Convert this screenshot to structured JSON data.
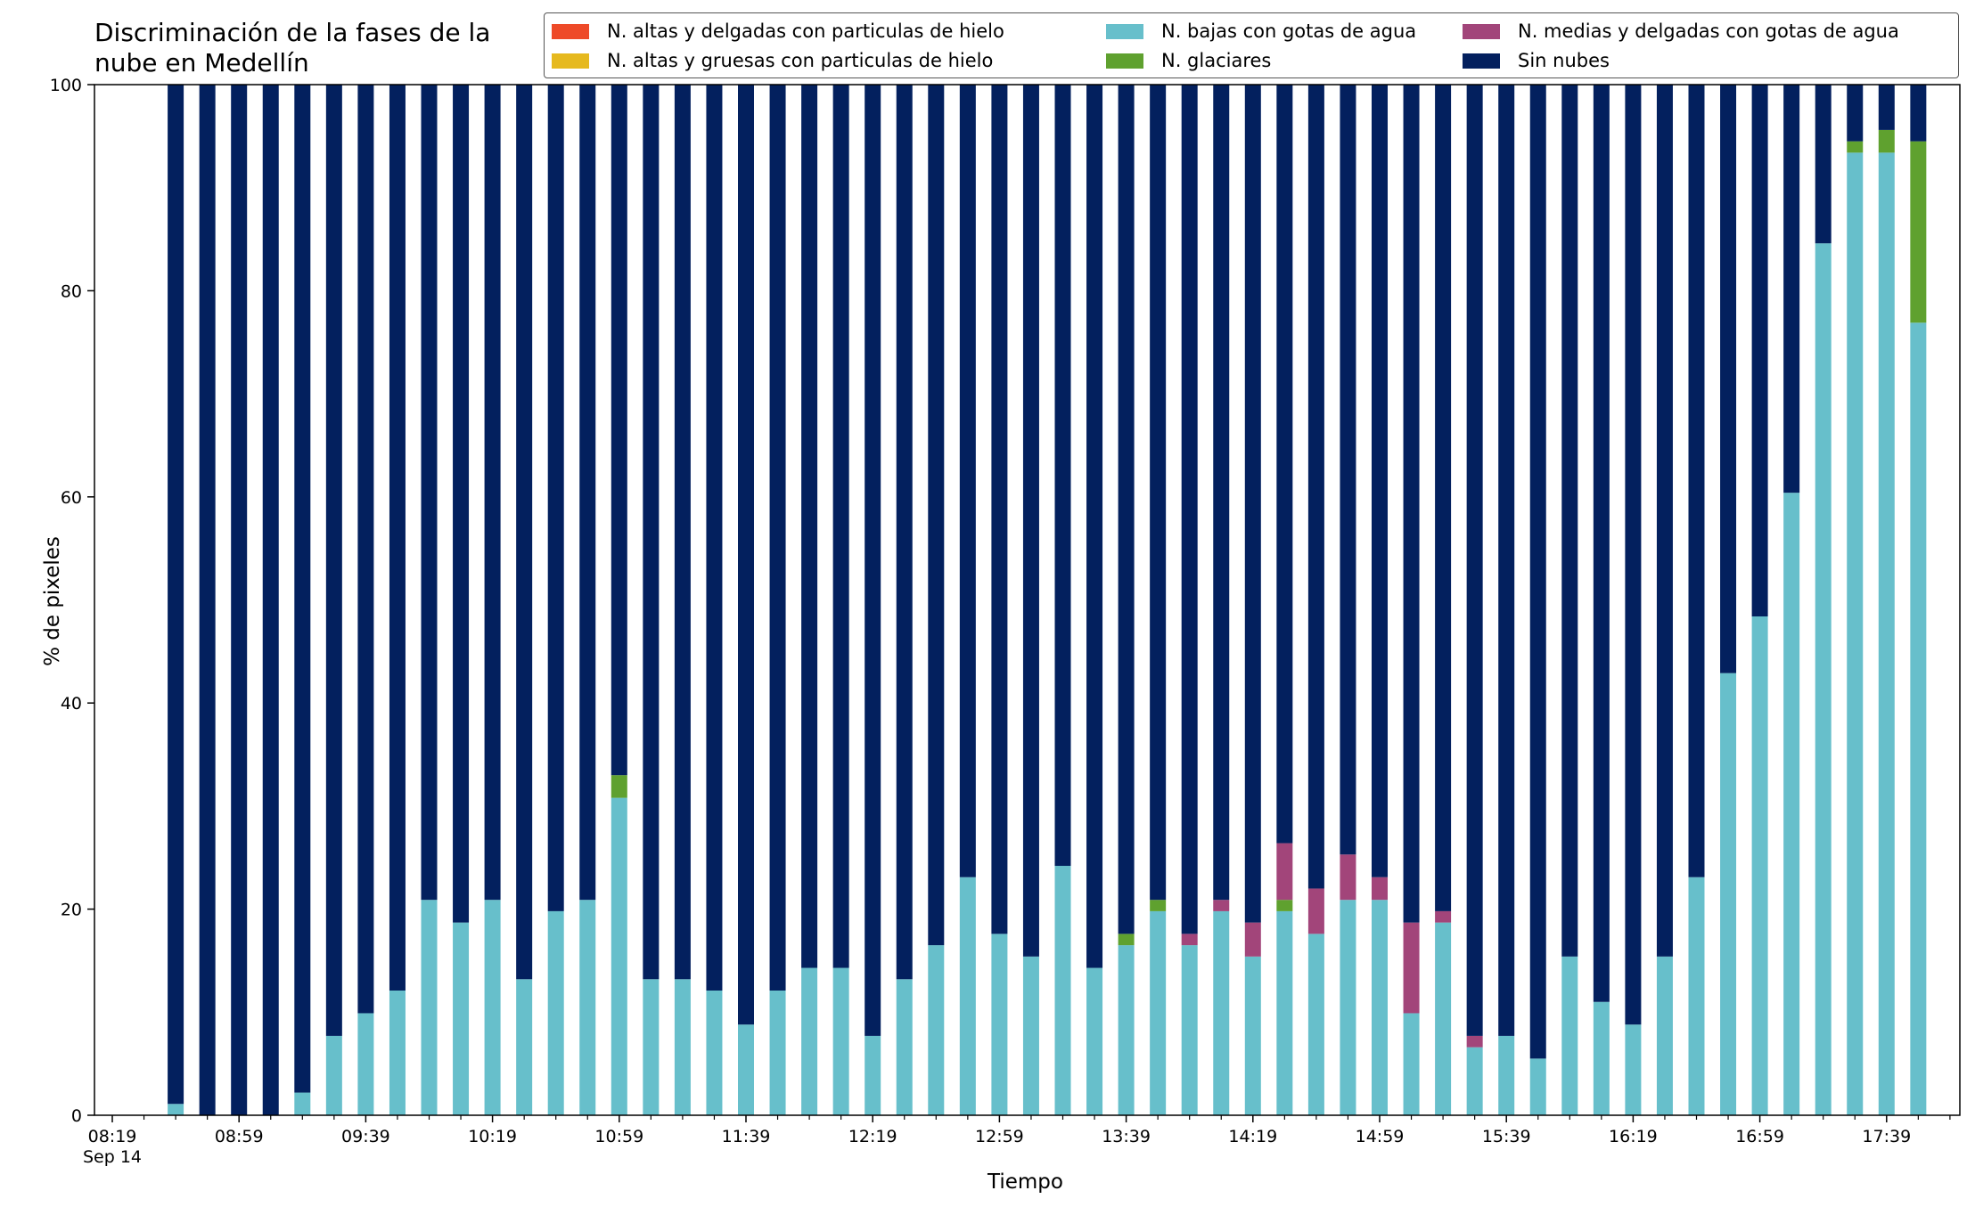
{
  "chart_data": {
    "type": "bar",
    "stacked": true,
    "title": "Discriminación de la fases de la\nnube en Medellín",
    "xlabel": "Tiempo",
    "ylabel": "% de pixeles",
    "ylim": [
      0,
      100
    ],
    "yticks": [
      0,
      20,
      40,
      60,
      80,
      100
    ],
    "x_ticks_labels": [
      "08:19\nSep 14",
      "08:59",
      "09:39",
      "10:19",
      "10:59",
      "11:39",
      "12:19",
      "12:59",
      "13:39",
      "14:19",
      "14:59",
      "15:39",
      "16:19",
      "16:59",
      "17:39"
    ],
    "legend_position": "top-right",
    "grid": false,
    "categories": [
      "08:39",
      "08:49",
      "08:59",
      "09:09",
      "09:19",
      "09:29",
      "09:39",
      "09:49",
      "09:59",
      "10:09",
      "10:19",
      "10:29",
      "10:39",
      "10:49",
      "10:59",
      "11:09",
      "11:19",
      "11:29",
      "11:39",
      "11:49",
      "11:59",
      "12:09",
      "12:19",
      "12:29",
      "12:39",
      "12:49",
      "12:59",
      "13:09",
      "13:19",
      "13:29",
      "13:39",
      "13:49",
      "13:59",
      "14:09",
      "14:19",
      "14:29",
      "14:39",
      "14:49",
      "14:59",
      "15:09",
      "15:19",
      "15:29",
      "15:39",
      "15:49",
      "15:59",
      "16:09",
      "16:19",
      "16:29",
      "16:39",
      "16:49",
      "16:59",
      "17:09",
      "17:19",
      "17:29",
      "17:39",
      "17:49"
    ],
    "series": [
      {
        "name": "N. altas y delgadas con particulas de hielo",
        "color": "#ee4a28",
        "values": [
          0,
          0,
          0,
          0,
          0,
          0,
          0,
          0,
          0,
          0,
          0,
          0,
          0,
          0,
          0,
          0,
          0,
          0,
          0,
          0,
          0,
          0,
          0,
          0,
          0,
          0,
          0,
          0,
          0,
          0,
          0,
          0,
          0,
          0,
          0,
          0,
          0,
          0,
          0,
          0,
          0,
          0,
          0,
          0,
          0,
          0,
          0,
          0,
          0,
          0,
          0,
          0,
          0,
          0,
          0,
          0
        ]
      },
      {
        "name": "N. altas y gruesas con particulas de hielo",
        "color": "#e6b91e",
        "values": [
          0,
          0,
          0,
          0,
          0,
          0,
          0,
          0,
          0,
          0,
          0,
          0,
          0,
          0,
          0,
          0,
          0,
          0,
          0,
          0,
          0,
          0,
          0,
          0,
          0,
          0,
          0,
          0,
          0,
          0,
          0,
          0,
          0,
          0,
          0,
          0,
          0,
          0,
          0,
          0,
          0,
          0,
          0,
          0,
          0,
          0,
          0,
          0,
          0,
          0,
          0,
          0,
          0,
          0,
          0,
          0
        ]
      },
      {
        "name": "N. bajas con gotas de agua",
        "color": "#67bfcb",
        "values": [
          1.1,
          0,
          0,
          0,
          2.2,
          7.7,
          9.9,
          12.1,
          20.9,
          18.7,
          20.9,
          13.2,
          19.8,
          20.9,
          30.8,
          13.2,
          13.2,
          12.1,
          8.8,
          12.1,
          14.3,
          14.3,
          7.7,
          13.2,
          16.5,
          23.1,
          17.6,
          15.4,
          24.2,
          14.3,
          16.5,
          19.8,
          16.5,
          19.8,
          15.4,
          19.8,
          17.6,
          20.9,
          20.9,
          9.9,
          18.7,
          6.6,
          7.7,
          5.5,
          15.4,
          11.0,
          8.8,
          15.4,
          23.1,
          42.9,
          48.4,
          60.4,
          84.6,
          93.4,
          93.4,
          76.9
        ]
      },
      {
        "name": "N. glaciares",
        "color": "#5fa12f",
        "values": [
          0,
          0,
          0,
          0,
          0,
          0,
          0,
          0,
          0,
          0,
          0,
          0,
          0,
          0,
          2.2,
          0,
          0,
          0,
          0,
          0,
          0,
          0,
          0,
          0,
          0,
          0,
          0,
          0,
          0,
          0,
          1.1,
          1.1,
          0,
          0,
          0,
          1.1,
          0,
          0,
          0,
          0,
          0,
          0,
          0,
          0,
          0,
          0,
          0,
          0,
          0,
          0,
          0,
          0,
          0,
          1.1,
          2.2,
          17.6
        ]
      },
      {
        "name": "N. medias y delgadas con gotas de agua",
        "color": "#a2457a",
        "values": [
          0,
          0,
          0,
          0,
          0,
          0,
          0,
          0,
          0,
          0,
          0,
          0,
          0,
          0,
          0,
          0,
          0,
          0,
          0,
          0,
          0,
          0,
          0,
          0,
          0,
          0,
          0,
          0,
          0,
          0,
          0,
          0,
          1.1,
          1.1,
          3.3,
          5.5,
          4.4,
          4.4,
          2.2,
          8.8,
          1.1,
          1.1,
          0,
          0,
          0,
          0,
          0,
          0,
          0,
          0,
          0,
          0,
          0,
          0,
          0,
          0
        ]
      },
      {
        "name": "Sin nubes",
        "color": "#03205e",
        "values": [
          98.9,
          100,
          100,
          100,
          97.8,
          92.3,
          90.1,
          87.9,
          79.1,
          81.3,
          79.1,
          86.8,
          80.2,
          79.1,
          67.0,
          86.8,
          86.8,
          87.9,
          91.2,
          87.9,
          85.7,
          85.7,
          92.3,
          86.8,
          83.5,
          76.9,
          82.4,
          84.6,
          75.8,
          85.7,
          82.4,
          79.1,
          82.4,
          79.1,
          81.3,
          73.6,
          78.0,
          74.7,
          76.9,
          81.3,
          80.2,
          92.3,
          92.3,
          94.5,
          84.6,
          89.0,
          91.2,
          84.6,
          76.9,
          57.1,
          51.6,
          39.6,
          15.4,
          5.5,
          4.4,
          5.5
        ]
      }
    ]
  }
}
